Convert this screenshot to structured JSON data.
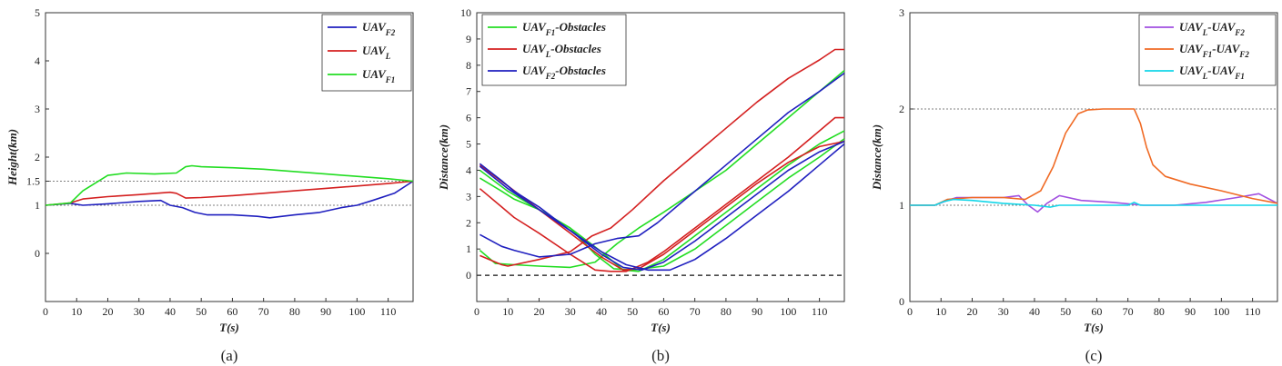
{
  "chart_data": [
    {
      "type": "line",
      "panel_label": "(a)",
      "xlabel": "T(s)",
      "ylabel": "Height(km)",
      "xlim": [
        0,
        118
      ],
      "ylim": [
        -1,
        5
      ],
      "xticks": [
        0,
        10,
        20,
        30,
        40,
        50,
        60,
        70,
        80,
        90,
        100,
        110
      ],
      "yticks": [
        0,
        1,
        1.5,
        2,
        3,
        4,
        5
      ],
      "legend_position": "top-right",
      "grid": false,
      "ref_lines": [
        1,
        1.5
      ],
      "series": [
        {
          "name": "UAV",
          "sub": "F2",
          "color": "#1f1fbf",
          "x": [
            0,
            8,
            12,
            20,
            30,
            37,
            40,
            44,
            48,
            52,
            60,
            68,
            72,
            76,
            80,
            88,
            95,
            100,
            105,
            112,
            118
          ],
          "y": [
            1.0,
            1.04,
            1.0,
            1.03,
            1.08,
            1.1,
            1.0,
            0.95,
            0.85,
            0.8,
            0.8,
            0.77,
            0.74,
            0.77,
            0.8,
            0.85,
            0.95,
            1.0,
            1.1,
            1.25,
            1.5
          ]
        },
        {
          "name": "UAV",
          "sub": "L",
          "color": "#d42020",
          "x": [
            0,
            8,
            12,
            20,
            30,
            40,
            42,
            45,
            50,
            60,
            70,
            80,
            90,
            100,
            110,
            118
          ],
          "y": [
            1.0,
            1.05,
            1.13,
            1.18,
            1.22,
            1.27,
            1.25,
            1.15,
            1.16,
            1.2,
            1.25,
            1.3,
            1.35,
            1.4,
            1.45,
            1.5
          ]
        },
        {
          "name": "UAV",
          "sub": "F1",
          "color": "#22dd22",
          "x": [
            0,
            8,
            12,
            20,
            26,
            35,
            42,
            45,
            47,
            50,
            60,
            70,
            80,
            90,
            100,
            110,
            118
          ],
          "y": [
            1.0,
            1.05,
            1.3,
            1.62,
            1.67,
            1.65,
            1.67,
            1.8,
            1.82,
            1.8,
            1.78,
            1.75,
            1.7,
            1.65,
            1.6,
            1.55,
            1.5
          ]
        }
      ]
    },
    {
      "type": "line",
      "panel_label": "(b)",
      "xlabel": "T(s)",
      "ylabel": "Distance(km)",
      "xlim": [
        0,
        118
      ],
      "ylim": [
        -1,
        10
      ],
      "xticks": [
        0,
        10,
        20,
        30,
        40,
        50,
        60,
        70,
        80,
        90,
        100,
        110
      ],
      "yticks": [
        0,
        1,
        2,
        3,
        4,
        5,
        6,
        7,
        8,
        9,
        10
      ],
      "legend_position": "top-left",
      "grid": false,
      "ref_lines": [
        0
      ],
      "series": [
        {
          "name": "UAV",
          "sub": "F1",
          "suffix": "-Obstacles",
          "color": "#22dd22",
          "traces": [
            {
              "x": [
                1,
                10,
                20,
                30,
                40,
                47,
                52,
                60,
                70,
                80,
                90,
                100,
                110,
                118
              ],
              "y": [
                4.0,
                3.2,
                2.5,
                1.8,
                0.9,
                0.2,
                0.15,
                0.6,
                1.5,
                2.4,
                3.3,
                4.2,
                5.0,
                5.5
              ]
            },
            {
              "x": [
                1,
                8,
                12,
                20,
                30,
                38,
                44,
                50,
                60,
                70,
                80,
                90,
                100,
                110,
                118
              ],
              "y": [
                3.7,
                3.2,
                2.9,
                2.5,
                1.8,
                0.8,
                0.25,
                0.2,
                0.35,
                1.0,
                1.9,
                2.8,
                3.7,
                4.5,
                5.2
              ]
            },
            {
              "x": [
                1,
                6,
                12,
                20,
                30,
                38,
                45,
                52,
                60,
                70,
                80,
                90,
                100,
                110,
                118
              ],
              "y": [
                0.95,
                0.45,
                0.4,
                0.35,
                0.3,
                0.5,
                1.2,
                1.8,
                2.4,
                3.2,
                4.0,
                5.0,
                6.0,
                7.0,
                7.8
              ]
            }
          ]
        },
        {
          "name": "UAV",
          "sub": "L",
          "suffix": "-Obstacles",
          "color": "#d42020",
          "traces": [
            {
              "x": [
                1,
                8,
                12,
                20,
                30,
                38,
                43,
                48,
                55,
                60,
                70,
                80,
                90,
                100,
                110,
                115,
                118
              ],
              "y": [
                3.3,
                2.6,
                2.2,
                1.6,
                0.8,
                0.2,
                0.15,
                0.15,
                0.5,
                0.9,
                1.8,
                2.7,
                3.6,
                4.5,
                5.5,
                6.0,
                6.0
              ]
            },
            {
              "x": [
                1,
                8,
                10,
                20,
                30,
                37,
                43,
                50,
                60,
                70,
                80,
                90,
                100,
                110,
                115,
                118
              ],
              "y": [
                0.75,
                0.4,
                0.35,
                0.6,
                0.9,
                1.5,
                1.8,
                2.5,
                3.6,
                4.6,
                5.6,
                6.6,
                7.5,
                8.2,
                8.6,
                8.6
              ]
            },
            {
              "x": [
                1,
                10,
                20,
                30,
                40,
                47,
                52,
                60,
                70,
                80,
                90,
                100,
                110,
                118
              ],
              "y": [
                4.2,
                3.4,
                2.5,
                1.6,
                0.7,
                0.2,
                0.25,
                0.8,
                1.7,
                2.6,
                3.5,
                4.3,
                4.9,
                5.1
              ]
            }
          ]
        },
        {
          "name": "UAV",
          "sub": "F2",
          "suffix": "-Obstacles",
          "color": "#1f1fbf",
          "traces": [
            {
              "x": [
                1,
                8,
                12,
                20,
                30,
                40,
                48,
                55,
                62,
                70,
                80,
                90,
                100,
                110,
                118
              ],
              "y": [
                4.25,
                3.6,
                3.2,
                2.6,
                1.7,
                0.9,
                0.4,
                0.2,
                0.2,
                0.6,
                1.4,
                2.3,
                3.2,
                4.2,
                5.0
              ]
            },
            {
              "x": [
                1,
                8,
                12,
                20,
                30,
                38,
                45,
                52,
                58,
                65,
                70,
                80,
                90,
                100,
                110,
                118
              ],
              "y": [
                1.55,
                1.1,
                0.95,
                0.7,
                0.8,
                1.2,
                1.4,
                1.5,
                2.0,
                2.7,
                3.2,
                4.2,
                5.2,
                6.2,
                7.0,
                7.7
              ]
            },
            {
              "x": [
                1,
                10,
                20,
                30,
                40,
                47,
                53,
                60,
                70,
                80,
                90,
                100,
                110,
                118
              ],
              "y": [
                4.15,
                3.3,
                2.5,
                1.7,
                0.8,
                0.3,
                0.2,
                0.5,
                1.3,
                2.2,
                3.1,
                4.0,
                4.7,
                5.1
              ]
            }
          ]
        }
      ]
    },
    {
      "type": "line",
      "panel_label": "(c)",
      "xlabel": "T(s)",
      "ylabel": "Distance(km)",
      "xlim": [
        0,
        118
      ],
      "ylim": [
        0,
        3
      ],
      "xticks": [
        0,
        10,
        20,
        30,
        40,
        50,
        60,
        70,
        80,
        90,
        100,
        110
      ],
      "yticks": [
        0,
        1,
        2,
        3
      ],
      "legend_position": "top-right",
      "grid": false,
      "ref_lines": [
        1,
        2
      ],
      "series": [
        {
          "name": "UAV",
          "sub": "L",
          "suffix": "-UAV",
          "sub2": "F2",
          "color": "#a14fe0",
          "x": [
            0,
            8,
            12,
            15,
            20,
            30,
            35,
            38,
            41,
            44,
            48,
            55,
            65,
            75,
            85,
            95,
            105,
            112,
            118
          ],
          "y": [
            1.0,
            1.0,
            1.05,
            1.08,
            1.08,
            1.08,
            1.1,
            1.0,
            0.93,
            1.02,
            1.1,
            1.05,
            1.03,
            1.0,
            1.0,
            1.03,
            1.08,
            1.12,
            1.02
          ]
        },
        {
          "name": "UAV",
          "sub": "F1",
          "suffix": "-UAV",
          "sub2": "F2",
          "color": "#f06a24",
          "x": [
            0,
            8,
            12,
            20,
            30,
            37,
            42,
            46,
            50,
            54,
            57,
            62,
            68,
            72,
            74,
            76,
            78,
            82,
            90,
            100,
            110,
            118
          ],
          "y": [
            1.0,
            1.0,
            1.06,
            1.08,
            1.08,
            1.06,
            1.15,
            1.4,
            1.75,
            1.95,
            1.99,
            2.0,
            2.0,
            2.0,
            1.85,
            1.6,
            1.42,
            1.3,
            1.22,
            1.15,
            1.07,
            1.02
          ]
        },
        {
          "name": "UAV",
          "sub": "L",
          "suffix": "-UAV",
          "sub2": "F1",
          "color": "#12d6e8",
          "x": [
            0,
            8,
            11,
            14,
            20,
            30,
            40,
            45,
            48,
            55,
            70,
            72,
            74,
            90,
            100,
            110,
            118
          ],
          "y": [
            1.0,
            1.0,
            1.04,
            1.06,
            1.05,
            1.02,
            1.0,
            0.98,
            1.0,
            1.0,
            1.0,
            1.03,
            1.0,
            1.0,
            1.0,
            1.0,
            1.0
          ]
        }
      ]
    }
  ]
}
